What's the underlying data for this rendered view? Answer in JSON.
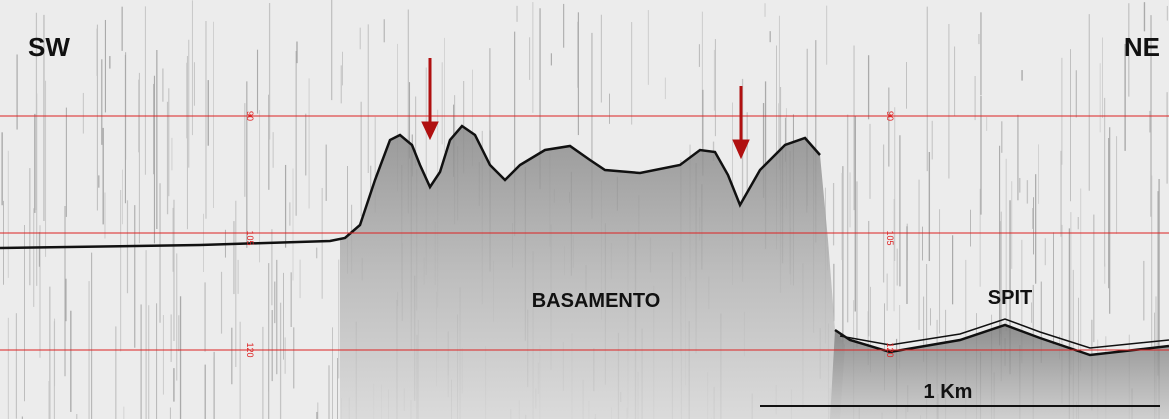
{
  "corner_labels": {
    "left": "SW",
    "right": "NE"
  },
  "depth_markers": {
    "left": [
      "90",
      "105",
      "120"
    ],
    "right": [
      "90",
      "105",
      "120"
    ]
  },
  "annotations": {
    "basement": "BASAMENTO",
    "spit": "SPIT"
  },
  "scale_bar": {
    "label": "1 Km"
  }
}
